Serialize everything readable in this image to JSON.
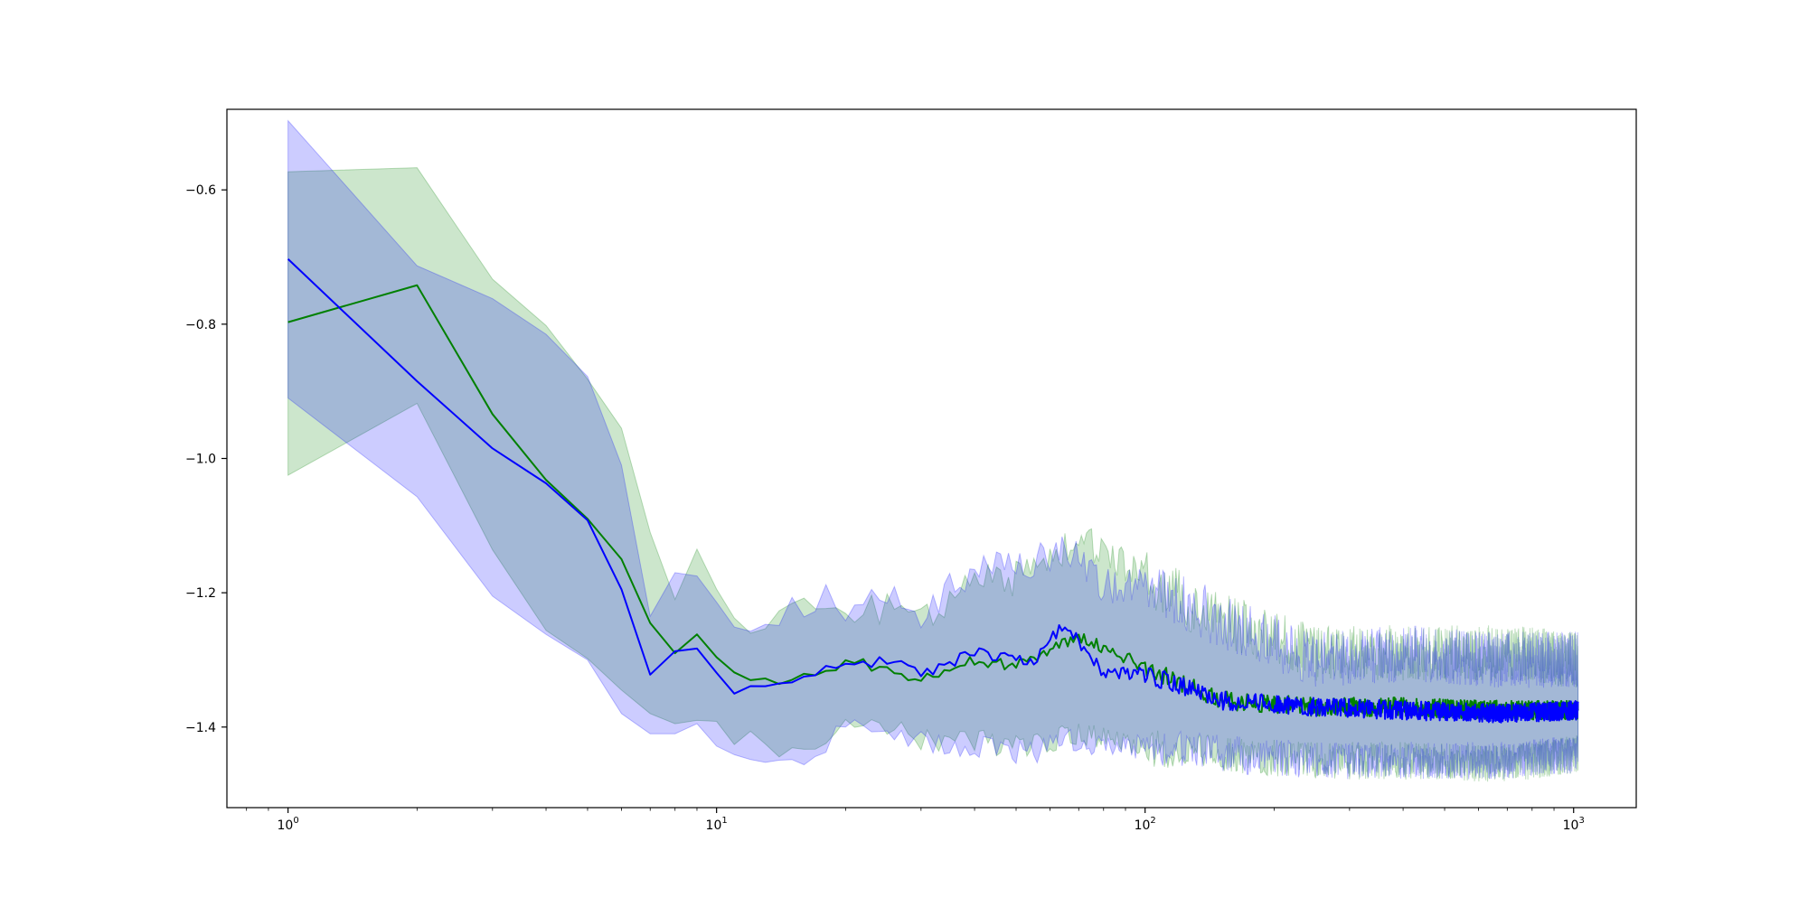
{
  "chart_data": {
    "type": "line",
    "title": "",
    "xlabel": "",
    "ylabel": "",
    "xscale": "log",
    "xlim": [
      0.72,
      1400
    ],
    "ylim": [
      -1.52,
      -0.48
    ],
    "grid": false,
    "x_ticks": [
      {
        "value": 1,
        "base": "10",
        "exp": "0"
      },
      {
        "value": 10,
        "base": "10",
        "exp": "1"
      },
      {
        "value": 100,
        "base": "10",
        "exp": "2"
      },
      {
        "value": 1000,
        "base": "10",
        "exp": "3"
      }
    ],
    "y_ticks": [
      {
        "value": -0.6,
        "label": "−0.6"
      },
      {
        "value": -0.8,
        "label": "−0.8"
      },
      {
        "value": -1.0,
        "label": "−1.0"
      },
      {
        "value": -1.2,
        "label": "−1.2"
      },
      {
        "value": -1.4,
        "label": "−1.4"
      }
    ],
    "x_range": [
      1,
      1024
    ],
    "series": [
      {
        "color": "#008000",
        "band_color": "#008000",
        "band_opacity": 0.2,
        "points": [
          [
            1,
            -0.797,
            -0.573,
            -1.025
          ],
          [
            2,
            -0.742,
            -0.567,
            -0.918
          ],
          [
            3,
            -0.934,
            -0.733,
            -1.136
          ],
          [
            4,
            -1.032,
            -0.802,
            -1.256
          ],
          [
            5,
            -1.09,
            -0.882,
            -1.298
          ],
          [
            6,
            -1.15,
            -0.955,
            -1.345
          ],
          [
            7,
            -1.245,
            -1.11,
            -1.38
          ],
          [
            8,
            -1.29,
            -1.21,
            -1.395
          ],
          [
            9,
            -1.262,
            -1.135,
            -1.39
          ],
          [
            10,
            -1.3,
            -1.2,
            -1.4
          ],
          [
            12,
            -1.333,
            -1.24,
            -1.42
          ],
          [
            15,
            -1.33,
            -1.22,
            -1.44
          ],
          [
            18,
            -1.315,
            -1.215,
            -1.415
          ],
          [
            20,
            -1.305,
            -1.235,
            -1.4
          ],
          [
            25,
            -1.31,
            -1.22,
            -1.4
          ],
          [
            30,
            -1.33,
            -1.24,
            -1.42
          ],
          [
            40,
            -1.3,
            -1.18,
            -1.42
          ],
          [
            50,
            -1.31,
            -1.18,
            -1.43
          ],
          [
            70,
            -1.265,
            -1.12,
            -1.41
          ],
          [
            100,
            -1.31,
            -1.18,
            -1.43
          ],
          [
            150,
            -1.36,
            -1.24,
            -1.44
          ],
          [
            250,
            -1.37,
            -1.29,
            -1.45
          ],
          [
            400,
            -1.37,
            -1.29,
            -1.45
          ],
          [
            700,
            -1.375,
            -1.29,
            -1.455
          ],
          [
            1024,
            -1.375,
            -1.3,
            -1.44
          ]
        ]
      },
      {
        "color": "#0000ff",
        "band_color": "#0000ff",
        "band_opacity": 0.2,
        "points": [
          [
            1,
            -0.703,
            -0.497,
            -0.91
          ],
          [
            2,
            -0.885,
            -0.713,
            -1.057
          ],
          [
            3,
            -0.985,
            -0.762,
            -1.205
          ],
          [
            4,
            -1.037,
            -0.815,
            -1.262
          ],
          [
            5,
            -1.092,
            -0.878,
            -1.3
          ],
          [
            6,
            -1.195,
            -1.01,
            -1.38
          ],
          [
            7,
            -1.322,
            -1.235,
            -1.41
          ],
          [
            8,
            -1.287,
            -1.17,
            -1.41
          ],
          [
            9,
            -1.283,
            -1.175,
            -1.395
          ],
          [
            11,
            -1.343,
            -1.245,
            -1.44
          ],
          [
            14,
            -1.335,
            -1.225,
            -1.445
          ],
          [
            17,
            -1.32,
            -1.205,
            -1.435
          ],
          [
            20,
            -1.31,
            -1.215,
            -1.405
          ],
          [
            25,
            -1.3,
            -1.2,
            -1.41
          ],
          [
            30,
            -1.32,
            -1.23,
            -1.42
          ],
          [
            40,
            -1.29,
            -1.17,
            -1.43
          ],
          [
            55,
            -1.3,
            -1.16,
            -1.44
          ],
          [
            65,
            -1.245,
            -1.125,
            -1.42
          ],
          [
            80,
            -1.32,
            -1.19,
            -1.43
          ],
          [
            100,
            -1.32,
            -1.19,
            -1.43
          ],
          [
            150,
            -1.36,
            -1.24,
            -1.44
          ],
          [
            250,
            -1.37,
            -1.3,
            -1.45
          ],
          [
            400,
            -1.375,
            -1.29,
            -1.45
          ],
          [
            700,
            -1.38,
            -1.3,
            -1.45
          ],
          [
            1024,
            -1.375,
            -1.3,
            -1.44
          ]
        ]
      }
    ]
  }
}
